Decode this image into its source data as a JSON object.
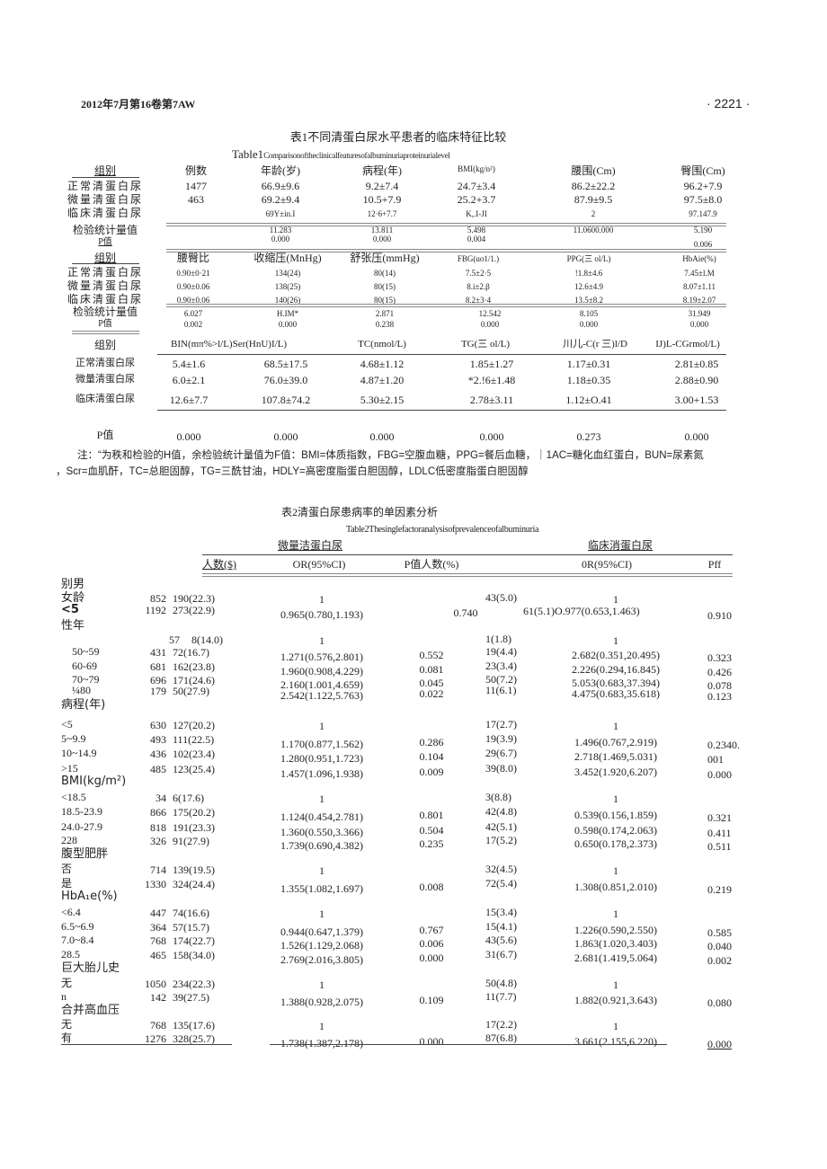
{
  "header": {
    "journal": "2012年7月第16卷第7AW",
    "page": "· 2221 ·"
  },
  "table1": {
    "title_cn": "表1不同清蛋白尿水平患者的临床特征比较",
    "title_en_prefix": "Table1",
    "title_en": "Comparisonoftheclinicalfeaturesofalbuminuriaproteinurialevel",
    "block1": {
      "headers": [
        "组别",
        "例数",
        "年龄(岁)",
        "病程(年)",
        "BMI(kg/n²)",
        "腰围(Cm)",
        "臀围(Cm)"
      ],
      "rows": [
        [
          "正常清蛋白尿",
          "1477",
          "66.9±9.6",
          "9.2±7.4",
          "24.7±3.4",
          "86.2±22.2",
          "96.2+7.9"
        ],
        [
          "微量清蛋白尿",
          "463",
          "69.2±9.4",
          "10.5+7.9",
          "25.2+3.7",
          "87.9±9.5",
          "97.5±8.0"
        ],
        [
          "临床清蛋白尿",
          "",
          "69Y±in.I",
          "12·6+7.7",
          "K,.I-JI",
          "2",
          "97.147.9"
        ]
      ],
      "stat_label": "检验统计量值",
      "stat": [
        "",
        "11.283",
        "13.811",
        "5.498",
        "11.0600.000",
        "5.190"
      ],
      "p_label": "P值",
      "p": [
        "",
        "0.000",
        "0.000",
        "0.004",
        "",
        "0.006"
      ]
    },
    "block2": {
      "headers": [
        "组别",
        "腰臀比",
        "收缩压(MnHg)",
        "舒张压(mmHg)",
        "FBG(uo1/1.)",
        "PPG(三 ol/L)",
        "HbAie(%)"
      ],
      "rows": [
        [
          "正常清蛋白尿",
          "0.90±0·21",
          "134(24)",
          "80(14)",
          "7.5±2·5",
          "!1.8±4.6",
          "7.45±l.M"
        ],
        [
          "微量清蛋白尿",
          "0.90±0.06",
          "138(25)",
          "80(15)",
          "8.i±2.β",
          "12.6±4.9",
          "8.07±1.11"
        ],
        [
          "临床清蛋白尿",
          "0.90±0.06",
          "140(26)",
          "80(15)",
          "8.2±3·4",
          "13.5±8.2",
          "8.19±2.07"
        ]
      ],
      "stat_label": "检验统计量值",
      "stat": [
        "6.027",
        "H.IM*",
        "2.871",
        "12.542",
        "8.105",
        "31.949"
      ],
      "p_label": "P值",
      "p": [
        "0.002",
        "0.000",
        "0.238",
        "0.000",
        "0.000",
        "0.000"
      ]
    },
    "block3": {
      "headers": [
        "组别",
        "BIN(mπ%>l/L)Ser(HnU)I/L)",
        "TC(nmol/L)",
        "TG(三 ol/L)",
        "川儿-C(r 三)l/D",
        "IJ)L-CGrmol/L)"
      ],
      "rows": [
        [
          "正常清蛋白尿",
          "5.4±1.6",
          "68.5±17.5",
          "4.68±1.12",
          "1.85±1.27",
          "1.17±0.31",
          "2.81±0.85"
        ],
        [
          "微量清蛋白尿",
          "6.0±2.1",
          "76.0±39.0",
          "4.87±1.20",
          "*2.!6±1.48",
          "1.18±0.35",
          "2.88±0.90"
        ],
        [
          "临床清蛋白尿",
          "12.6±7.7",
          "107.8±74.2",
          "5.30±2.15",
          "2.78±3.11",
          "1.12±O.41",
          "3.00+1.53"
        ]
      ],
      "p_label": "P值",
      "p": [
        "0.000",
        "0.000",
        "0.000",
        "0.000",
        "0.273",
        "0.000"
      ]
    },
    "note_line1": "注：“为秩和检验的H值，余检验统计量值为F值：BMI=体质指数，FBG=空腹血糖，PPG=餐后血糖，｜1AC=糖化血红蛋白，BUN=尿素氮",
    "note_line2": "，Scr=血肌酐，TC=总胆固醇，TG=三酰甘油，HDLY=高密度脂蛋白胆固醇，LDLC低密度脂蛋白胆固醇"
  },
  "table2": {
    "title_cn": "表2清蛋白尿患病率的单因素分析",
    "title_en": "Table2Thesinglefactoranalysisofprevalenceofalbuminuria",
    "group1": "微量洁蛋白尿",
    "group2": "临床消蛋白尿",
    "headers": [
      "人数($)",
      "OR(95%CI)",
      "P值人数(%)",
      "0R(95%CI)",
      "Pff"
    ],
    "rows": [
      [
        "别男",
        "",
        "",
        "",
        "",
        "",
        "",
        ""
      ],
      [
        "女龄",
        "852",
        "190(22.3)",
        "1",
        "",
        "43(5.0)",
        "1",
        ""
      ],
      [
        "<5",
        "1192",
        "273(22.9)",
        "0.965(0.780,1.193)",
        "0.740",
        "61(5.1)O.977(0.653,1.463)",
        "",
        "0.910"
      ],
      [
        "性年",
        "",
        "",
        "",
        "",
        "",
        "",
        ""
      ],
      [
        "",
        "57",
        "8(14.0)",
        "1",
        "",
        "1(1.8)",
        "1",
        ""
      ],
      [
        "50~59",
        "431",
        "72(16.7)",
        "1.271(0.576,2.801)",
        "0.552",
        "19(4.4)",
        "2.682(0.351,20.495)",
        "0.323"
      ],
      [
        "60-69",
        "681",
        "162(23.8)",
        "1.960(0.908,4.229)",
        "0.081",
        "23(3.4)",
        "2.226(0.294,16.845)",
        "0.426"
      ],
      [
        "70~79",
        "696",
        "171(24.6)",
        "2.160(1.001,4.659)",
        "0.045",
        "50(7.2)",
        "5.053(0.683,37.394)",
        "0.078"
      ],
      [
        "¼80",
        "179",
        "50(27.9)",
        "2.542(1.122,5.763)",
        "0.022",
        "11(6.1)",
        "4.475(0.683,35.618)",
        "0.123"
      ],
      [
        "病程(年)",
        "",
        "",
        "",
        "",
        "",
        "",
        ""
      ],
      [
        "<5",
        "630",
        "127(20.2)",
        "1",
        "",
        "17(2.7)",
        "1",
        ""
      ],
      [
        "5~9.9",
        "493",
        "111(22.5)",
        "1.170(0.877,1.562)",
        "0.286",
        "19(3.9)",
        "1.496(0.767,2.919)",
        "0.2340."
      ],
      [
        "10~14.9",
        "436",
        "102(23.4)",
        "1.280(0.951,1.723)",
        "0.104",
        "29(6.7)",
        "2.718(1.469,5.031)",
        "001"
      ],
      [
        ">15",
        "485",
        "123(25.4)",
        "1.457(1.096,1.938)",
        "0.009",
        "39(8.0)",
        "3.452(1.920,6.207)",
        "0.000"
      ],
      [
        "BMI(kg/m²)",
        "",
        "",
        "",
        "",
        "",
        "",
        ""
      ],
      [
        "<18.5",
        "34",
        "6(17.6)",
        "1",
        "",
        "3(8.8)",
        "1",
        ""
      ],
      [
        "18.5-23.9",
        "866",
        "175(20.2)",
        "1.124(0.454,2.781)",
        "0.801",
        "42(4.8)",
        "0.539(0.156,1.859)",
        "0.321"
      ],
      [
        "24.0-27.9",
        "818",
        "191(23.3)",
        "1.360(0.550,3.366)",
        "0.504",
        "42(5.1)",
        "0.598(0.174,2.063)",
        "0.411"
      ],
      [
        "228",
        "326",
        "91(27.9)",
        "1.739(0.690,4.382)",
        "0.235",
        "17(5.2)",
        "0.650(0.178,2.373)",
        "0.511"
      ],
      [
        "腹型肥胖",
        "",
        "",
        "",
        "",
        "",
        "",
        ""
      ],
      [
        "否",
        "714",
        "139(19.5)",
        "1",
        "",
        "32(4.5)",
        "1",
        ""
      ],
      [
        "是",
        "1330",
        "324(24.4)",
        "1.355(1.082,1.697)",
        "0.008",
        "72(5.4)",
        "1.308(0.851,2.010)",
        "0.219"
      ],
      [
        "HbA₁e(%)",
        "",
        "",
        "",
        "",
        "",
        "",
        ""
      ],
      [
        "<6.4",
        "447",
        "74(16.6)",
        "1",
        "",
        "15(3.4)",
        "1",
        ""
      ],
      [
        "6.5~6.9",
        "364",
        "57(15.7)",
        "0.944(0.647,1.379)",
        "0.767",
        "15(4.1)",
        "1.226(0.590,2.550)",
        "0.585"
      ],
      [
        "7.0~8.4",
        "768",
        "174(22.7)",
        "1.526(1.129,2.068)",
        "0.006",
        "43(5.6)",
        "1.863(1.020,3.403)",
        "0.040"
      ],
      [
        "28.5",
        "465",
        "158(34.0)",
        "2.769(2.016,3.805)",
        "0.000",
        "31(6.7)",
        "2.681(1.419,5.064)",
        "0.002"
      ],
      [
        "巨大胎儿史",
        "",
        "",
        "",
        "",
        "",
        "",
        ""
      ],
      [
        "无",
        "1050",
        "234(22.3)",
        "1",
        "",
        "50(4.8)",
        "1",
        ""
      ],
      [
        "n",
        "142",
        "39(27.5)",
        "1.388(0.928,2.075)",
        "0.109",
        "11(7.7)",
        "1.882(0.921,3.643)",
        "0.080"
      ],
      [
        "合并高血压",
        "",
        "",
        "",
        "",
        "",
        "",
        ""
      ],
      [
        "无",
        "768",
        "135(17.6)",
        "1",
        "",
        "17(2.2)",
        "1",
        ""
      ],
      [
        "有",
        "1276",
        "328(25.7)",
        "1.738(1.387,2.178)",
        "0.000",
        "87(6.8)",
        "3.661(2.155,6.220)",
        "0.000"
      ]
    ]
  }
}
